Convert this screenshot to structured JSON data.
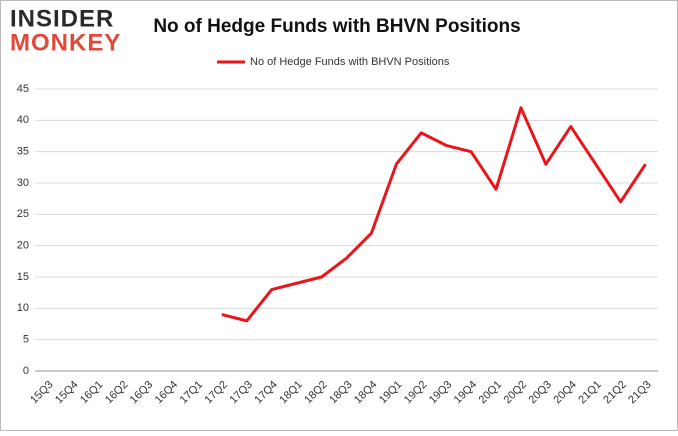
{
  "logo": {
    "line1": "INSIDER",
    "line2": "MONKEY"
  },
  "chart_data": {
    "type": "line",
    "title": "No of Hedge Funds with BHVN Positions",
    "categories": [
      "15Q3",
      "15Q4",
      "16Q1",
      "16Q2",
      "16Q3",
      "16Q4",
      "17Q1",
      "17Q2",
      "17Q3",
      "17Q4",
      "18Q1",
      "18Q2",
      "18Q3",
      "18Q4",
      "19Q1",
      "19Q2",
      "19Q3",
      "19Q4",
      "20Q1",
      "20Q2",
      "20Q3",
      "20Q4",
      "21Q1",
      "21Q2",
      "21Q3"
    ],
    "series": [
      {
        "name": "No of Hedge Funds with BHVN Positions",
        "color": "#e8161b",
        "values": [
          null,
          null,
          null,
          null,
          null,
          null,
          null,
          9,
          8,
          13,
          14,
          15,
          18,
          22,
          33,
          38,
          36,
          35,
          29,
          42,
          33,
          39,
          33,
          27,
          33
        ]
      }
    ],
    "ylim": [
      0,
      45
    ],
    "yticks": [
      0,
      5,
      10,
      15,
      20,
      25,
      30,
      35,
      40,
      45
    ],
    "grid": true,
    "legend": "top"
  }
}
